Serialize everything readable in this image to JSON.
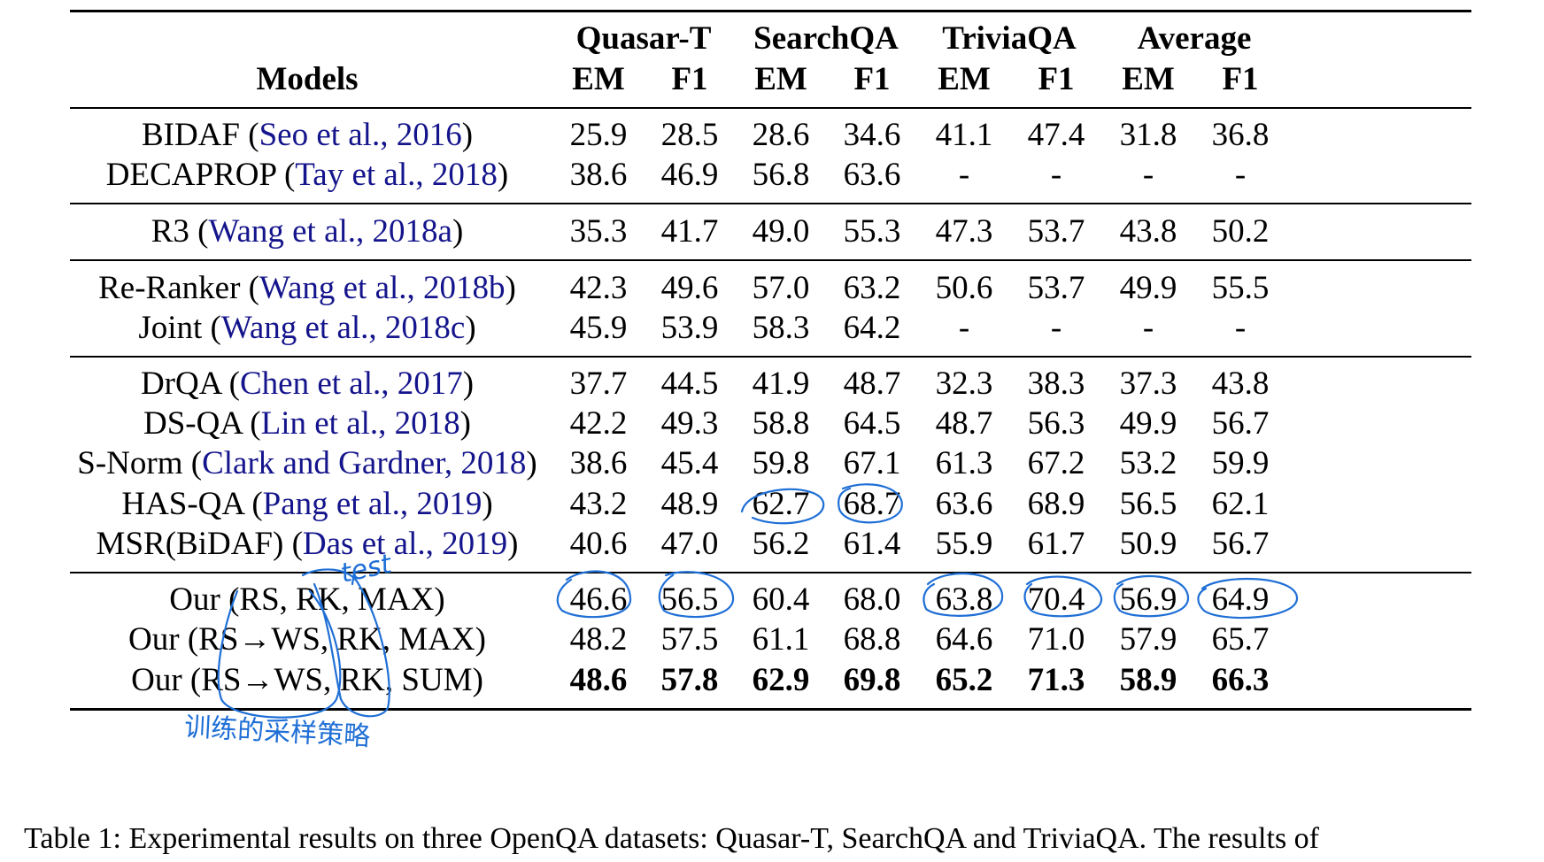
{
  "table": {
    "models_header": "Models",
    "group_headers": [
      "Quasar-T",
      "SearchQA",
      "TriviaQA",
      "Average"
    ],
    "metric_headers": [
      "EM",
      "F1",
      "EM",
      "F1",
      "EM",
      "F1",
      "EM",
      "F1"
    ],
    "rows": [
      {
        "name": "BIDAF",
        "cite": "Seo et al., 2016",
        "values": [
          "25.9",
          "28.5",
          "28.6",
          "34.6",
          "41.1",
          "47.4",
          "31.8",
          "36.8"
        ]
      },
      {
        "name": "DECAPROP",
        "cite": "Tay et al., 2018",
        "values": [
          "38.6",
          "46.9",
          "56.8",
          "63.6",
          "-",
          "-",
          "-",
          "-"
        ]
      },
      {
        "name": "R3",
        "cite": "Wang et al., 2018a",
        "values": [
          "35.3",
          "41.7",
          "49.0",
          "55.3",
          "47.3",
          "53.7",
          "43.8",
          "50.2"
        ]
      },
      {
        "name": "Re-Ranker",
        "cite": "Wang et al., 2018b",
        "values": [
          "42.3",
          "49.6",
          "57.0",
          "63.2",
          "50.6",
          "53.7",
          "49.9",
          "55.5"
        ]
      },
      {
        "name": "Joint",
        "cite": "Wang et al., 2018c",
        "values": [
          "45.9",
          "53.9",
          "58.3",
          "64.2",
          "-",
          "-",
          "-",
          "-"
        ]
      },
      {
        "name": "DrQA",
        "cite": "Chen et al., 2017",
        "values": [
          "37.7",
          "44.5",
          "41.9",
          "48.7",
          "32.3",
          "38.3",
          "37.3",
          "43.8"
        ]
      },
      {
        "name": "DS-QA",
        "cite": "Lin et al., 2018",
        "values": [
          "42.2",
          "49.3",
          "58.8",
          "64.5",
          "48.7",
          "56.3",
          "49.9",
          "56.7"
        ]
      },
      {
        "name": "S-Norm",
        "cite": "Clark and Gardner, 2018",
        "values": [
          "38.6",
          "45.4",
          "59.8",
          "67.1",
          "61.3",
          "67.2",
          "53.2",
          "59.9"
        ]
      },
      {
        "name": "HAS-QA",
        "cite": "Pang et al., 2019",
        "values": [
          "43.2",
          "48.9",
          "62.7",
          "68.7",
          "63.6",
          "68.9",
          "56.5",
          "62.1"
        ]
      },
      {
        "name": "MSR(BiDAF)",
        "cite": "Das et al., 2019",
        "values": [
          "40.6",
          "47.0",
          "56.2",
          "61.4",
          "55.9",
          "61.7",
          "50.9",
          "56.7"
        ]
      },
      {
        "name": "Our (RS, RK, MAX)",
        "cite": "",
        "values": [
          "46.6",
          "56.5",
          "60.4",
          "68.0",
          "63.8",
          "70.4",
          "56.9",
          "64.9"
        ]
      },
      {
        "name": "Our (RS→WS, RK, MAX)",
        "cite": "",
        "values": [
          "48.2",
          "57.5",
          "61.1",
          "68.8",
          "64.6",
          "71.0",
          "57.9",
          "65.7"
        ]
      },
      {
        "name": "Our (RS→WS, RK, SUM)",
        "cite": "",
        "values": [
          "48.6",
          "57.8",
          "62.9",
          "69.8",
          "65.2",
          "71.3",
          "58.9",
          "66.3"
        ],
        "bold": true
      }
    ]
  },
  "caption": "Table 1:  Experimental results on three OpenQA datasets:  Quasar-T, SearchQA and TriviaQA. The results of",
  "annotations": {
    "ink_color": "#1f6fd6",
    "note_test": "test",
    "note_chinese": "训练的采样策略"
  }
}
